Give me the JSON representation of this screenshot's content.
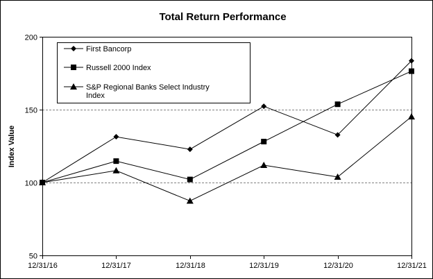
{
  "chart_data": {
    "type": "line",
    "title": "Total Return Performance",
    "xlabel": "",
    "ylabel": "Index Value",
    "categories": [
      "12/31/16",
      "12/31/17",
      "12/31/18",
      "12/31/19",
      "12/31/20",
      "12/31/21"
    ],
    "yticks": [
      "50",
      "100",
      "150",
      "200"
    ],
    "ylim": [
      50,
      200
    ],
    "grid": "horizontal dashed at 100 and 150",
    "legend_placement": "top-left",
    "series": [
      {
        "name": "First Bancorp",
        "marker": "diamond",
        "values": [
          100,
          131.4,
          122.8,
          152.3,
          132.7,
          183.5
        ]
      },
      {
        "name": "Russell 2000 Index",
        "marker": "square",
        "values": [
          100,
          114.7,
          102.1,
          128.1,
          153.7,
          176.4
        ]
      },
      {
        "name": "S&P Regional Banks Select Industry Index",
        "legend_lines": [
          "S&P Regional Banks Select Industry",
          "Index"
        ],
        "marker": "triangle",
        "values": [
          100,
          108.2,
          87.4,
          111.9,
          103.8,
          145.2
        ]
      }
    ]
  }
}
